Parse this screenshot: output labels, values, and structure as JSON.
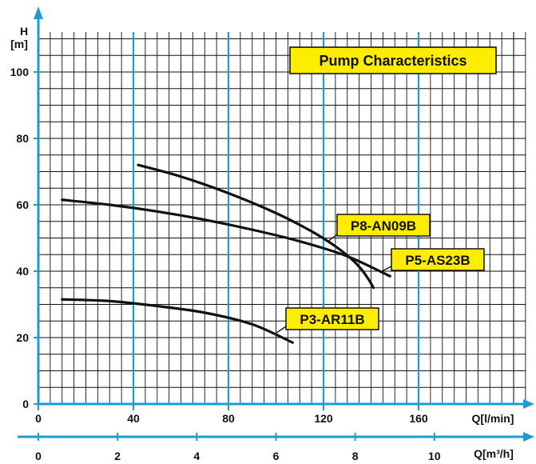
{
  "chart_data": {
    "type": "line",
    "title": "Pump Characteristics",
    "ylabel_top": "H",
    "ylabel_unit": "[m]",
    "xlabel": "Q[l/min]",
    "x2label": "Q[m³/h]",
    "xlim": [
      0,
      200
    ],
    "ylim": [
      0,
      110
    ],
    "x2lim": [
      0,
      12
    ],
    "x_ticks": [
      0,
      40,
      80,
      120,
      160
    ],
    "y_ticks": [
      0,
      20,
      40,
      60,
      80,
      100
    ],
    "x2_ticks": [
      0,
      2,
      4,
      6,
      8,
      10
    ],
    "grid": true,
    "series": [
      {
        "name": "P8-AN09B",
        "x": [
          42,
          60,
          80,
          100,
          115,
          125,
          132,
          136,
          139,
          141
        ],
        "y": [
          72,
          68.5,
          63.5,
          57.5,
          52,
          47.5,
          43.5,
          40.5,
          37.5,
          35
        ]
      },
      {
        "name": "P5-AS23B",
        "x": [
          10,
          30,
          50,
          70,
          90,
          110,
          130,
          148
        ],
        "y": [
          61.5,
          60,
          58,
          55.5,
          52.5,
          49,
          44.5,
          38.5
        ]
      },
      {
        "name": "P3-AR11B",
        "x": [
          10,
          30,
          50,
          70,
          90,
          107
        ],
        "y": [
          31.5,
          31,
          29.5,
          27.5,
          24,
          18.5
        ]
      }
    ]
  },
  "colors": {
    "axis": "#1e9ad6",
    "grid": "#111111",
    "curve": "#111111",
    "label_fill": "#ffed00",
    "label_border": "#111111"
  }
}
